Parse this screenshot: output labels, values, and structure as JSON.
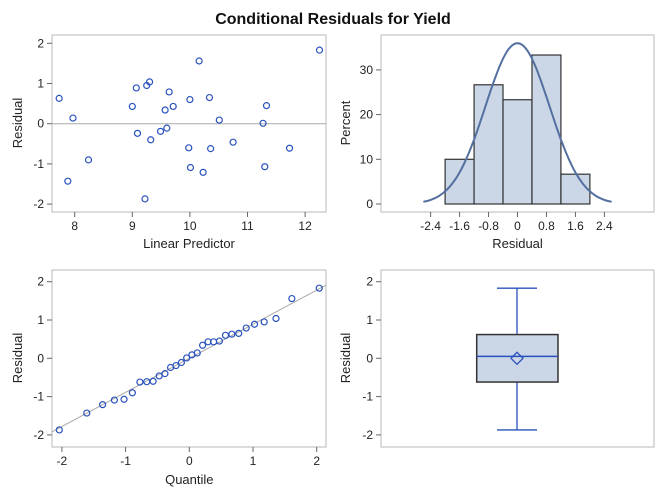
{
  "title": "Conditional Residuals for Yield",
  "colors": {
    "marker": "#2a52be",
    "fill": "#cbd6e6",
    "curve": "#5470a0",
    "ref": "#a8a8a8",
    "box_edge": "#333333"
  },
  "chart_data": [
    {
      "type": "scatter",
      "xlabel": "Linear Predictor",
      "ylabel": "Residual",
      "xlim": [
        7.65,
        12.4
      ],
      "ylim": [
        -2.2,
        2.2
      ],
      "xticks": [
        "8",
        "9",
        "10",
        "11",
        "12"
      ],
      "yticks": [
        "-2",
        "-1",
        "0",
        "1",
        "2"
      ],
      "reference_line_y": 0,
      "points": [
        [
          7.73,
          0.63
        ],
        [
          7.88,
          -1.43
        ],
        [
          7.97,
          0.14
        ],
        [
          8.24,
          -0.9
        ],
        [
          9.0,
          0.43
        ],
        [
          9.07,
          0.89
        ],
        [
          9.09,
          -0.24
        ],
        [
          9.22,
          -1.87
        ],
        [
          9.25,
          0.95
        ],
        [
          9.3,
          1.04
        ],
        [
          9.32,
          -0.4
        ],
        [
          9.49,
          -0.19
        ],
        [
          9.57,
          0.34
        ],
        [
          9.6,
          -0.11
        ],
        [
          9.64,
          0.79
        ],
        [
          9.71,
          0.43
        ],
        [
          9.98,
          -0.6
        ],
        [
          10.0,
          0.6
        ],
        [
          10.01,
          -1.09
        ],
        [
          10.16,
          1.56
        ],
        [
          10.23,
          -1.21
        ],
        [
          10.34,
          0.65
        ],
        [
          10.36,
          -0.62
        ],
        [
          10.51,
          0.09
        ],
        [
          10.75,
          -0.46
        ],
        [
          11.27,
          0.01
        ],
        [
          11.3,
          -1.07
        ],
        [
          11.33,
          0.45
        ],
        [
          11.73,
          -0.61
        ],
        [
          12.25,
          1.83
        ]
      ]
    },
    {
      "type": "bar",
      "xlabel": "Residual",
      "ylabel": "Percent",
      "xticks": [
        "-2.4",
        "-1.6",
        "-0.8",
        "0",
        "0.8",
        "1.6",
        "2.4"
      ],
      "yticks": [
        "0",
        "10",
        "20",
        "30"
      ],
      "bins": [
        [
          -2.0,
          -1.2
        ],
        [
          -1.2,
          -0.4
        ],
        [
          -0.4,
          0.4
        ],
        [
          0.4,
          1.2
        ],
        [
          1.2,
          2.0
        ]
      ],
      "values": [
        10.0,
        26.67,
        23.33,
        33.33,
        6.67
      ],
      "normal_curve": {
        "mean": 0,
        "sd": 0.887,
        "range": [
          -2.6,
          2.6
        ]
      }
    },
    {
      "type": "scatter",
      "xlabel": "Quantile",
      "ylabel": "Residual",
      "xticks": [
        "-2",
        "-1",
        "0",
        "1",
        "2"
      ],
      "yticks": [
        "-2",
        "-1",
        "0",
        "1",
        "2"
      ],
      "reference_line": {
        "intercept": 0,
        "slope": 0.89
      },
      "note_points": "sorted residuals vs normal quantiles"
    },
    {
      "type": "box",
      "ylabel": "Residual",
      "yticks": [
        "-2",
        "-1",
        "0",
        "1",
        "2"
      ],
      "min": -1.87,
      "q1": -0.62,
      "median": 0.05,
      "mean": 0.0,
      "q3": 0.62,
      "max": 1.83
    }
  ]
}
